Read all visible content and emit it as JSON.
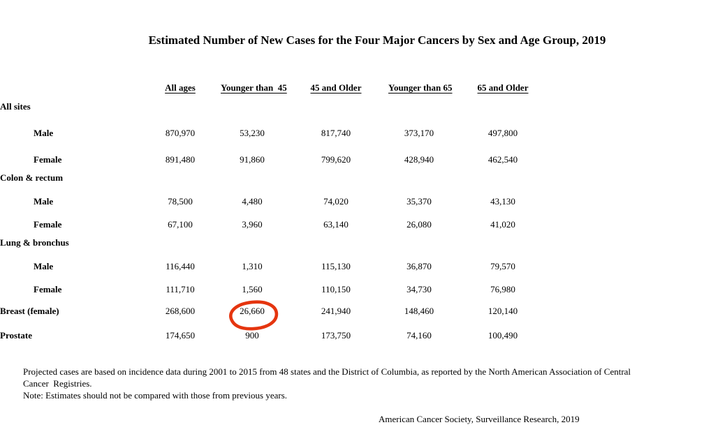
{
  "page": {
    "title": "Estimated Number of New Cases for the Four Major Cancers by Sex and Age Group, 2019"
  },
  "table": {
    "column_headers": [
      "All ages",
      "Younger than  45",
      "45 and Older",
      "Younger than 65",
      "65 and Older"
    ],
    "rows": [
      {
        "label": "All sites",
        "type": "section",
        "indent": false,
        "values": []
      },
      {
        "label": "Male",
        "type": "data",
        "indent": true,
        "values": [
          "870,970",
          "53,230",
          "817,740",
          "373,170",
          "497,800"
        ]
      },
      {
        "label": "Female",
        "type": "data",
        "indent": true,
        "values": [
          "891,480",
          "91,860",
          "799,620",
          "428,940",
          "462,540"
        ]
      },
      {
        "label": "Colon & rectum",
        "type": "section",
        "indent": false,
        "values": []
      },
      {
        "label": "Male",
        "type": "data",
        "indent": true,
        "values": [
          "78,500",
          "4,480",
          "74,020",
          "35,370",
          "43,130"
        ]
      },
      {
        "label": "Female",
        "type": "data",
        "indent": true,
        "values": [
          "67,100",
          "3,960",
          "63,140",
          "26,080",
          "41,020"
        ]
      },
      {
        "label": "Lung & bronchus",
        "type": "section",
        "indent": false,
        "values": []
      },
      {
        "label": "Male",
        "type": "data",
        "indent": true,
        "values": [
          "116,440",
          "1,310",
          "115,130",
          "36,870",
          "79,570"
        ]
      },
      {
        "label": "Female",
        "type": "data",
        "indent": true,
        "values": [
          "111,710",
          "1,560",
          "110,150",
          "34,730",
          "76,980"
        ]
      },
      {
        "label": "Breast (female)",
        "type": "data",
        "indent": false,
        "values": [
          "268,600",
          "26,660",
          "241,940",
          "148,460",
          "120,140"
        ],
        "circled_value_index": 1
      },
      {
        "label": "Prostate",
        "type": "data",
        "indent": false,
        "values": [
          "174,650",
          "900",
          "173,750",
          "74,160",
          "100,490"
        ]
      }
    ]
  },
  "annotation": {
    "type": "hand-drawn-red-circle",
    "color": "#e5350f",
    "circled_value": "26,660",
    "circled_row": "Breast (female)",
    "circled_column": "Younger than  45"
  },
  "footnotes": {
    "lines": [
      "Projected cases are based on incidence data during 2001 to 2015 from 48 states and the District of Columbia, as reported by the North American Association of Central",
      "Cancer  Registries.",
      "Note: Estimates should not be compared with those from previous years."
    ]
  },
  "source": "American Cancer Society, Surveillance Research, 2019"
}
